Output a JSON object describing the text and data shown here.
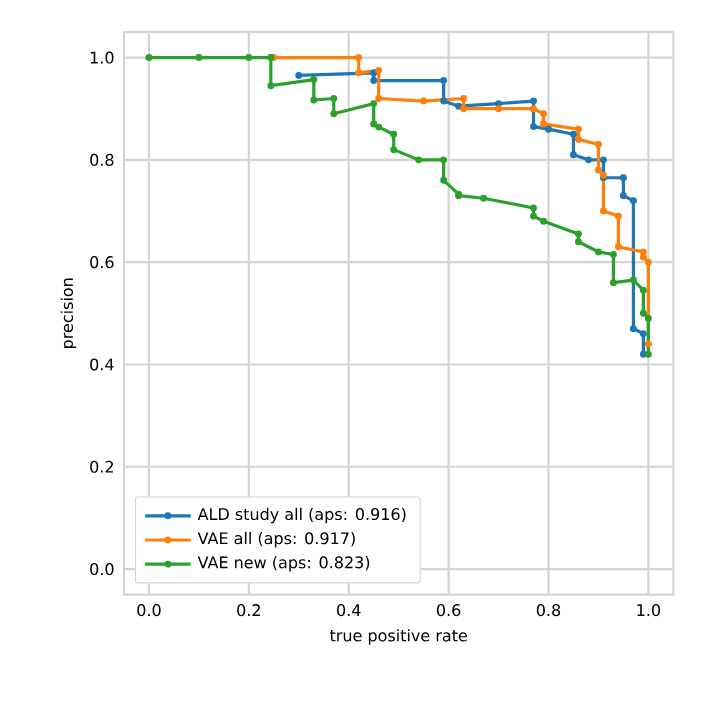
{
  "chart_data": {
    "type": "line",
    "xlabel": "true positive rate",
    "ylabel": "precision",
    "xlim": [
      -0.05,
      1.05
    ],
    "ylim": [
      -0.05,
      1.05
    ],
    "xticks": [
      {
        "value": 0,
        "label": "0.0"
      },
      0.2,
      0.4,
      0.6,
      0.8,
      {
        "value": 1,
        "label": "1.0"
      }
    ],
    "yticks": [
      {
        "value": 0,
        "label": "0.0"
      },
      0.2,
      0.4,
      0.6,
      0.8,
      {
        "value": 1,
        "label": "1.0"
      }
    ],
    "grid": true,
    "legend": "bottom left",
    "marker": "circle",
    "series": [
      {
        "name": "ALD study all (aps: 0.916)",
        "color": "#1f77b4",
        "x": [
          0.3,
          0.45,
          0.45,
          0.59,
          0.59,
          0.62,
          0.7,
          0.77,
          0.77,
          0.8,
          0.85,
          0.85,
          0.88,
          0.91,
          0.91,
          0.95,
          0.95,
          0.97,
          0.97,
          0.99,
          0.99
        ],
        "values": [
          0.965,
          0.97,
          0.955,
          0.955,
          0.915,
          0.905,
          0.91,
          0.915,
          0.865,
          0.86,
          0.85,
          0.81,
          0.8,
          0.8,
          0.765,
          0.765,
          0.73,
          0.72,
          0.47,
          0.46,
          0.42
        ]
      },
      {
        "name": "VAE all (aps: 0.917)",
        "color": "#ff7f0e",
        "x": [
          0.25,
          0.42,
          0.42,
          0.46,
          0.46,
          0.55,
          0.63,
          0.63,
          0.7,
          0.77,
          0.79,
          0.79,
          0.86,
          0.86,
          0.9,
          0.9,
          0.91,
          0.91,
          0.94,
          0.94,
          0.99,
          0.99,
          1.0,
          1.0
        ],
        "values": [
          1,
          1,
          0.97,
          0.975,
          0.92,
          0.915,
          0.92,
          0.9,
          0.9,
          0.9,
          0.89,
          0.87,
          0.86,
          0.84,
          0.83,
          0.78,
          0.77,
          0.7,
          0.69,
          0.63,
          0.62,
          0.61,
          0.6,
          0.44
        ]
      },
      {
        "name": "VAE new (aps: 0.823)",
        "color": "#2ca02c",
        "x": [
          0,
          0.1,
          0.2,
          0.244,
          0.244,
          0.33,
          0.33,
          0.37,
          0.37,
          0.45,
          0.45,
          0.46,
          0.49,
          0.49,
          0.54,
          0.59,
          0.59,
          0.62,
          0.62,
          0.67,
          0.77,
          0.77,
          0.79,
          0.86,
          0.86,
          0.9,
          0.93,
          0.93,
          0.97,
          0.99,
          0.99,
          1.0,
          1.0
        ],
        "values": [
          1,
          1,
          1,
          1,
          0.945,
          0.957,
          0.917,
          0.92,
          0.89,
          0.91,
          0.87,
          0.864,
          0.85,
          0.82,
          0.8,
          0.8,
          0.76,
          0.733,
          0.73,
          0.725,
          0.706,
          0.69,
          0.68,
          0.655,
          0.64,
          0.62,
          0.615,
          0.56,
          0.565,
          0.545,
          0.5,
          0.49,
          0.42
        ]
      }
    ]
  }
}
